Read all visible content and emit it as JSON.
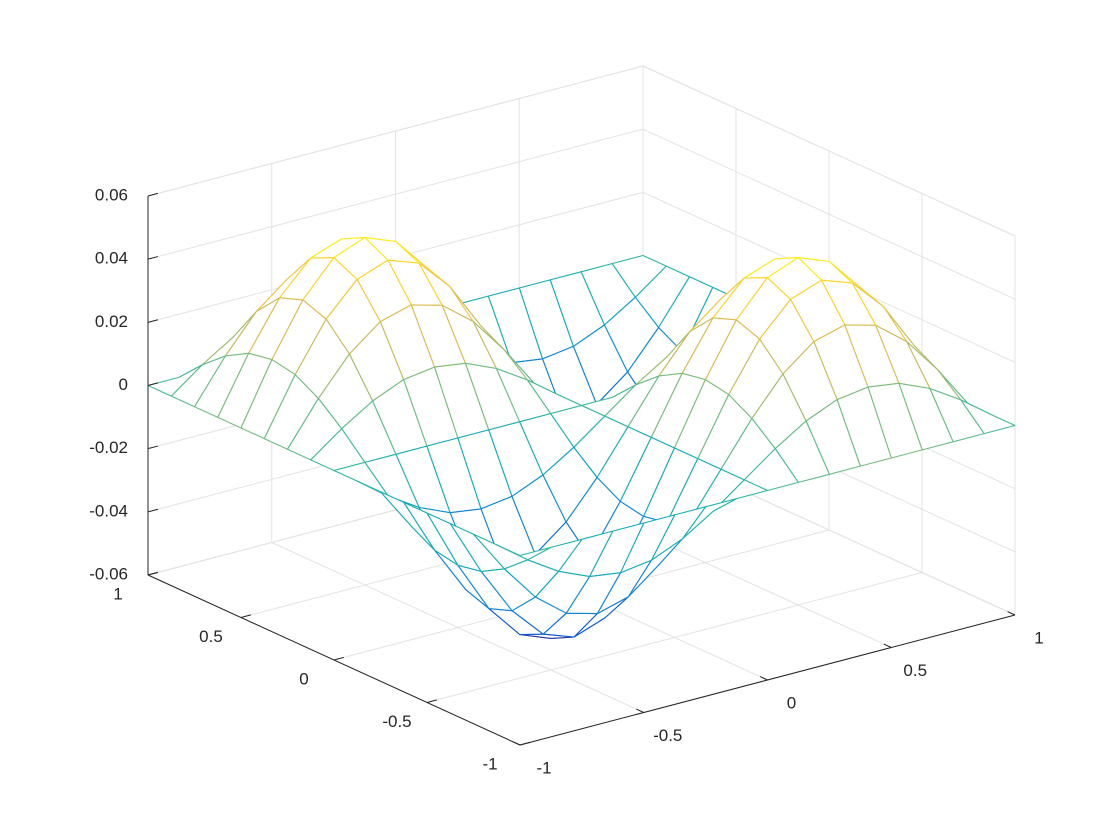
{
  "chart_data": {
    "type": "mesh",
    "x": [
      -1,
      -0.875,
      -0.75,
      -0.625,
      -0.5,
      -0.375,
      -0.25,
      -0.125,
      0,
      0.125,
      0.25,
      0.375,
      0.5,
      0.625,
      0.75,
      0.875,
      1
    ],
    "y": [
      -1,
      -0.875,
      -0.75,
      -0.625,
      -0.5,
      -0.375,
      -0.25,
      -0.125,
      0,
      0.125,
      0.25,
      0.375,
      0.5,
      0.625,
      0.75,
      0.875,
      1
    ],
    "z": [
      [
        0,
        0,
        0,
        0,
        0,
        0,
        0,
        0,
        0,
        0,
        0,
        0,
        0,
        0,
        0,
        0,
        0
      ],
      [
        0,
        -0.0073,
        -0.0135,
        -0.0177,
        -0.0191,
        -0.0177,
        -0.0135,
        -0.0073,
        0,
        0.0073,
        0.0135,
        0.0177,
        0.0191,
        0.0177,
        0.0135,
        0.0073,
        0
      ],
      [
        0,
        -0.0135,
        -0.025,
        -0.0327,
        -0.0354,
        -0.0327,
        -0.025,
        -0.0135,
        0,
        0.0135,
        0.025,
        0.0327,
        0.0354,
        0.0327,
        0.025,
        0.0135,
        0
      ],
      [
        0,
        -0.0177,
        -0.0327,
        -0.0427,
        -0.0462,
        -0.0427,
        -0.0327,
        -0.0177,
        0,
        0.0177,
        0.0327,
        0.0427,
        0.0462,
        0.0427,
        0.0327,
        0.0177,
        0
      ],
      [
        0,
        -0.0191,
        -0.0354,
        -0.0462,
        -0.05,
        -0.0462,
        -0.0354,
        -0.0191,
        0,
        0.0191,
        0.0354,
        0.0462,
        0.05,
        0.0462,
        0.0354,
        0.0191,
        0
      ],
      [
        0,
        -0.0177,
        -0.0327,
        -0.0427,
        -0.0462,
        -0.0427,
        -0.0327,
        -0.0177,
        0,
        0.0177,
        0.0327,
        0.0427,
        0.0462,
        0.0427,
        0.0327,
        0.0177,
        0
      ],
      [
        0,
        -0.0135,
        -0.025,
        -0.0327,
        -0.0354,
        -0.0327,
        -0.025,
        -0.0135,
        0,
        0.0135,
        0.025,
        0.0327,
        0.0354,
        0.0327,
        0.025,
        0.0135,
        0
      ],
      [
        0,
        -0.0073,
        -0.0135,
        -0.0177,
        -0.0191,
        -0.0177,
        -0.0135,
        -0.0073,
        0,
        0.0073,
        0.0135,
        0.0177,
        0.0191,
        0.0177,
        0.0135,
        0.0073,
        0
      ],
      [
        0,
        0,
        0,
        0,
        0,
        0,
        0,
        0,
        0,
        0,
        0,
        0,
        0,
        0,
        0,
        0,
        0
      ],
      [
        0,
        0.0073,
        0.0135,
        0.0177,
        0.0191,
        0.0177,
        0.0135,
        0.0073,
        0,
        -0.0073,
        -0.0135,
        -0.0177,
        -0.0191,
        -0.0177,
        -0.0135,
        -0.0073,
        0
      ],
      [
        0,
        0.0135,
        0.025,
        0.0327,
        0.0354,
        0.0327,
        0.025,
        0.0135,
        0,
        -0.0135,
        -0.025,
        -0.0327,
        -0.0354,
        -0.0327,
        -0.025,
        -0.0135,
        0
      ],
      [
        0,
        0.0177,
        0.0327,
        0.0427,
        0.0462,
        0.0427,
        0.0327,
        0.0177,
        0,
        -0.0177,
        -0.0327,
        -0.0427,
        -0.0462,
        -0.0427,
        -0.0327,
        -0.0177,
        0
      ],
      [
        0,
        0.0191,
        0.0354,
        0.0462,
        0.05,
        0.0462,
        0.0354,
        0.0191,
        0,
        -0.0191,
        -0.0354,
        -0.0462,
        -0.05,
        -0.0462,
        -0.0354,
        -0.0191,
        0
      ],
      [
        0,
        0.0177,
        0.0327,
        0.0427,
        0.0462,
        0.0427,
        0.0327,
        0.0177,
        0,
        -0.0177,
        -0.0327,
        -0.0427,
        -0.0462,
        -0.0427,
        -0.0327,
        -0.0177,
        0
      ],
      [
        0,
        0.0135,
        0.025,
        0.0327,
        0.0354,
        0.0327,
        0.025,
        0.0135,
        0,
        -0.0135,
        -0.025,
        -0.0327,
        -0.0354,
        -0.0327,
        -0.025,
        -0.0135,
        0
      ],
      [
        0,
        0.0073,
        0.0135,
        0.0177,
        0.0191,
        0.0177,
        0.0135,
        0.0073,
        0,
        -0.0073,
        -0.0135,
        -0.0177,
        -0.0191,
        -0.0177,
        -0.0135,
        -0.0073,
        0
      ],
      [
        0,
        0,
        0,
        0,
        0,
        0,
        0,
        0,
        0,
        0,
        0,
        0,
        0,
        0,
        0,
        0,
        0
      ]
    ],
    "xlim": [
      -1,
      1
    ],
    "ylim": [
      -1,
      1
    ],
    "zlim": [
      -0.06,
      0.06
    ],
    "xticks": [
      -1,
      -0.5,
      0,
      0.5,
      1
    ],
    "yticks": [
      -1,
      -0.5,
      0,
      0.5,
      1
    ],
    "zticks": [
      -0.06,
      -0.04,
      -0.02,
      0,
      0.02,
      0.04,
      0.06
    ],
    "grid": true,
    "colormap": [
      "#352a87",
      "#0363e1",
      "#1485d4",
      "#06a7c6",
      "#38b99e",
      "#92bf73",
      "#d9ba56",
      "#fcce2e",
      "#f9fb0e"
    ]
  }
}
